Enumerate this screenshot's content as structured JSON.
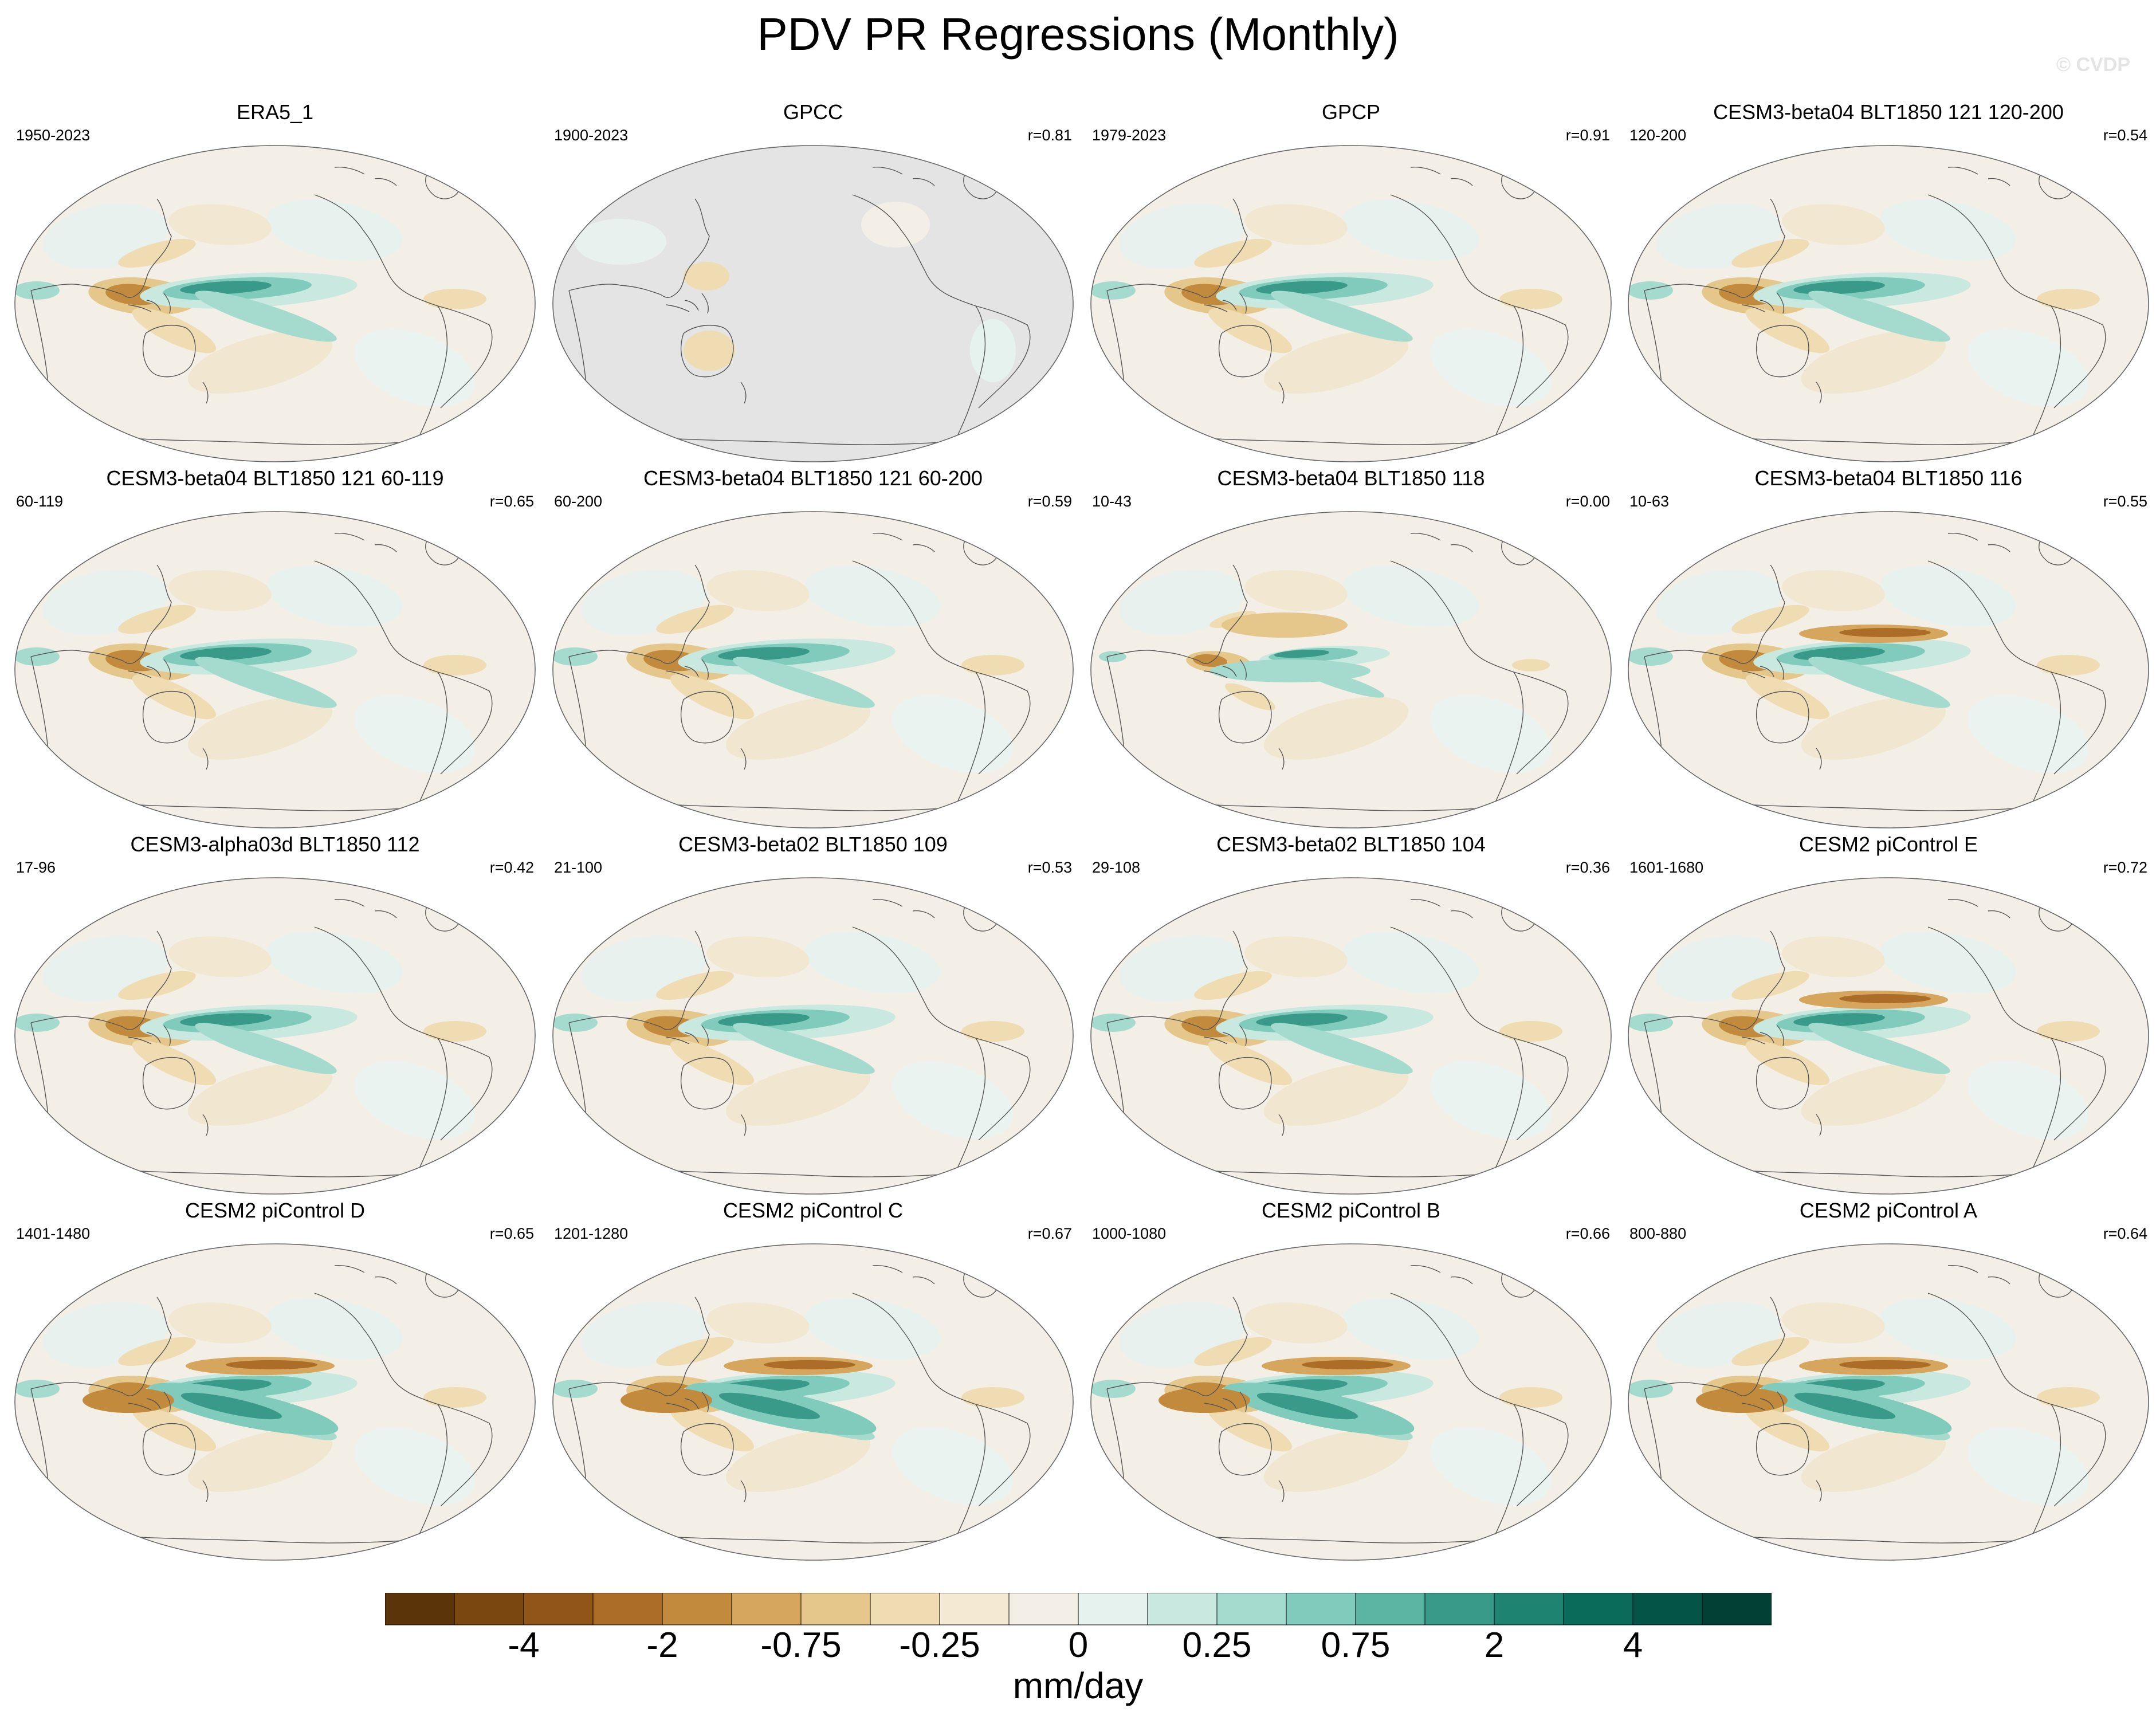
{
  "figure": {
    "title": "PDV PR Regressions (Monthly)",
    "watermark": "© CVDP"
  },
  "chart_data": {
    "type": "map-grid",
    "variable": "PR",
    "units": "mm/day",
    "layout": "4 rows x 4 columns",
    "projection": "Robinson-style global ellipse, Pacific-centered",
    "panels": [
      {
        "title": "ERA5_1",
        "period": "1950-2023",
        "r": "",
        "gray_mask": false,
        "pattern": "era5"
      },
      {
        "title": "GPCC",
        "period": "1900-2023",
        "r": "r=0.81",
        "gray_mask": true,
        "pattern": "gpcc"
      },
      {
        "title": "GPCP",
        "period": "1979-2023",
        "r": "r=0.91",
        "gray_mask": false,
        "pattern": "gpcp"
      },
      {
        "title": "CESM3-beta04 BLT1850 121 120-200",
        "period": "120-200",
        "r": "r=0.54",
        "gray_mask": false,
        "pattern": "model"
      },
      {
        "title": "CESM3-beta04 BLT1850 121 60-119",
        "period": "60-119",
        "r": "r=0.65",
        "gray_mask": false,
        "pattern": "model"
      },
      {
        "title": "CESM3-beta04 BLT1850 121 60-200",
        "period": "60-200",
        "r": "r=0.59",
        "gray_mask": false,
        "pattern": "model"
      },
      {
        "title": "CESM3-beta04 BLT1850 118",
        "period": "10-43",
        "r": "r=0.00",
        "gray_mask": false,
        "pattern": "weak"
      },
      {
        "title": "CESM3-beta04 BLT1850 116",
        "period": "10-63",
        "r": "r=0.55",
        "gray_mask": false,
        "pattern": "model-dry"
      },
      {
        "title": "CESM3-alpha03d BLT1850 112",
        "period": "17-96",
        "r": "r=0.42",
        "gray_mask": false,
        "pattern": "model"
      },
      {
        "title": "CESM3-beta02 BLT1850 109",
        "period": "21-100",
        "r": "r=0.53",
        "gray_mask": false,
        "pattern": "model"
      },
      {
        "title": "CESM3-beta02 BLT1850 104",
        "period": "29-108",
        "r": "r=0.36",
        "gray_mask": false,
        "pattern": "model"
      },
      {
        "title": "CESM2 piControl E",
        "period": "1601-1680",
        "r": "r=0.72",
        "gray_mask": false,
        "pattern": "model-dry"
      },
      {
        "title": "CESM2 piControl D",
        "period": "1401-1480",
        "r": "r=0.65",
        "gray_mask": false,
        "pattern": "strong"
      },
      {
        "title": "CESM2 piControl C",
        "period": "1201-1280",
        "r": "r=0.67",
        "gray_mask": false,
        "pattern": "strong"
      },
      {
        "title": "CESM2 piControl B",
        "period": "1000-1080",
        "r": "r=0.66",
        "gray_mask": false,
        "pattern": "strong"
      },
      {
        "title": "CESM2 piControl A",
        "period": "800-880",
        "r": "r=0.64",
        "gray_mask": false,
        "pattern": "strong"
      }
    ],
    "colorbar": {
      "label": "mm/day",
      "tick_labels": [
        "-4",
        "-2",
        "-0.75",
        "-0.25",
        "0",
        "0.25",
        "0.75",
        "2",
        "4"
      ],
      "colors": [
        "#5b3409",
        "#7a4710",
        "#915617",
        "#ab6d27",
        "#c28a3d",
        "#d6a65e",
        "#e5c78b",
        "#efdcb3",
        "#f4e9d2",
        "#f3efe6",
        "#e6f2ee",
        "#c9e8df",
        "#a5dbcf",
        "#80cbbb",
        "#5bb5a2",
        "#3a9a89",
        "#1f8372",
        "#0b6b5b",
        "#055448",
        "#023f34"
      ]
    }
  }
}
